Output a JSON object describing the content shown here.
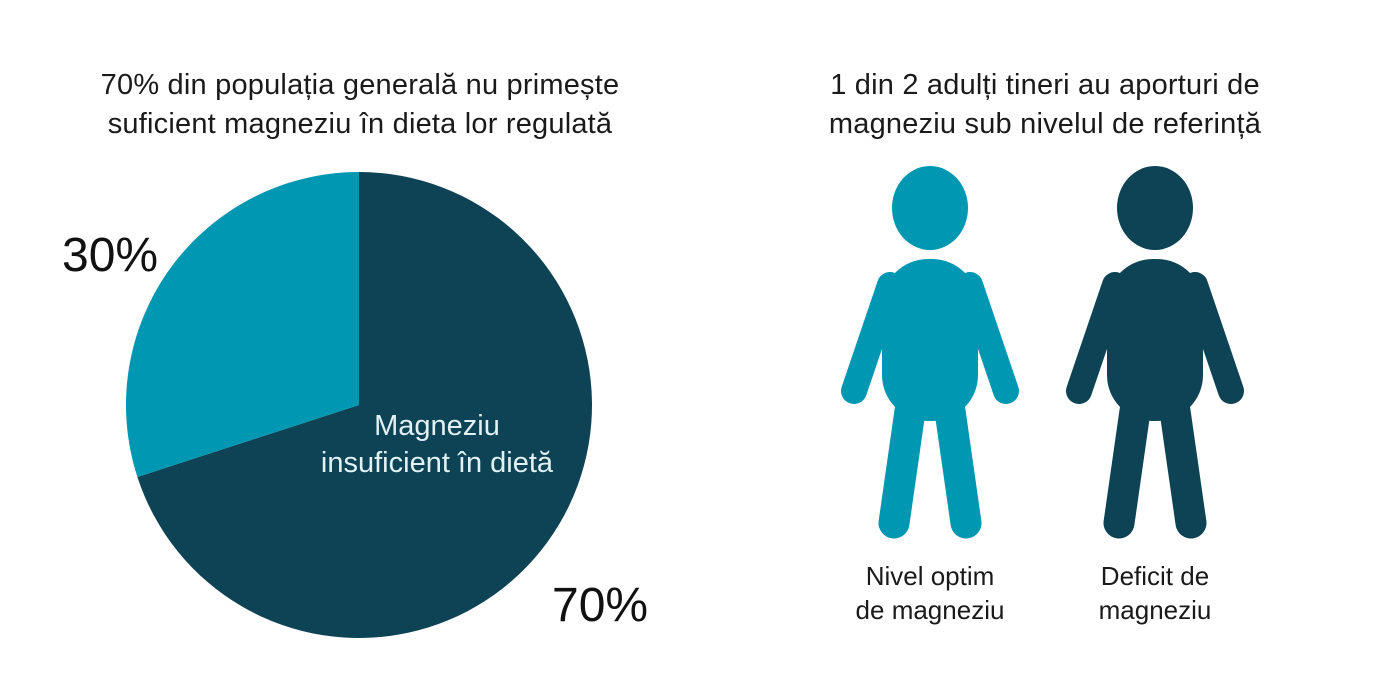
{
  "colors": {
    "teal": "#0097b2",
    "dark_teal": "#0d4354",
    "title_text": "#1a1a1a",
    "pie_inner_label_text": "#e2f1f4",
    "background": "#ffffff"
  },
  "chart_data": [
    {
      "type": "pie",
      "title": "70% din populația generală nu primește suficient magneziu în dieta lor regulată",
      "title_lines": [
        "70% din populația generală nu primește",
        "suficient magneziu în dieta lor regulată"
      ],
      "start_angle_deg": 0,
      "direction": "clockwise",
      "legend": "none",
      "slices": [
        {
          "value": 70,
          "percent_label": "70%",
          "label": "Magneziu insuficient în dietă",
          "label_lines": [
            "Magneziu",
            "insuficient în dietă"
          ],
          "color": "#0d4354",
          "label_color": "#e2f1f4"
        },
        {
          "value": 30,
          "percent_label": "30%",
          "color": "#0097b2"
        }
      ]
    },
    {
      "type": "pictogram",
      "title": "1 din 2 adulți tineri au aporturi de magneziu sub nivelul de referință",
      "title_lines": [
        "1 din 2 adulți tineri au aporturi de",
        "magneziu sub nivelul de referință"
      ],
      "icon": "person-icon",
      "categories": [
        "Nivel optim de magneziu",
        "Deficit de magneziu"
      ],
      "values": [
        1,
        1
      ],
      "figures": [
        {
          "label": "Nivel optim de magneziu",
          "label_lines": [
            "Nivel optim",
            "de magneziu"
          ],
          "color": "#0097b2"
        },
        {
          "label": "Deficit de magneziu",
          "label_lines": [
            "Deficit de",
            "magneziu"
          ],
          "color": "#0d4354"
        }
      ]
    }
  ]
}
